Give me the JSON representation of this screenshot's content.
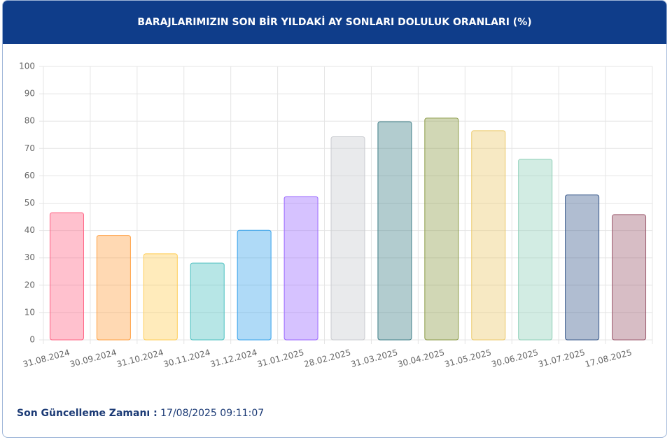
{
  "chart_data": {
    "type": "bar",
    "title": "BARAJLARIMIZIN SON BİR YILDAKİ AY SONLARI DOLULUK ORANLARI (%)",
    "categories": [
      "31.08.2024",
      "30.09.2024",
      "31.10.2024",
      "30.11.2024",
      "31.12.2024",
      "31.01.2025",
      "28.02.2025",
      "31.03.2025",
      "30.04.2025",
      "31.05.2025",
      "30.06.2025",
      "31.07.2025",
      "17.08.2025"
    ],
    "values": [
      46.5,
      38.2,
      31.5,
      28.1,
      40.1,
      52.4,
      74.3,
      79.8,
      81.1,
      76.5,
      66.1,
      53.0,
      45.8
    ],
    "colors": [
      "#ff6384",
      "#ff9f40",
      "#ffcd56",
      "#4bc0c0",
      "#36a2eb",
      "#9966ff",
      "#c9cbcf",
      "#3f7f88",
      "#8b9a46",
      "#ecc96a",
      "#8fd0b8",
      "#3a5a8c",
      "#9c5a6e"
    ],
    "ylim": [
      0,
      100
    ],
    "yticks": [
      0,
      10,
      20,
      30,
      40,
      50,
      60,
      70,
      80,
      90,
      100
    ],
    "grid": true
  },
  "footer": {
    "label": "Son Güncelleme Zamanı :",
    "value": "17/08/2025 09:11:07"
  }
}
